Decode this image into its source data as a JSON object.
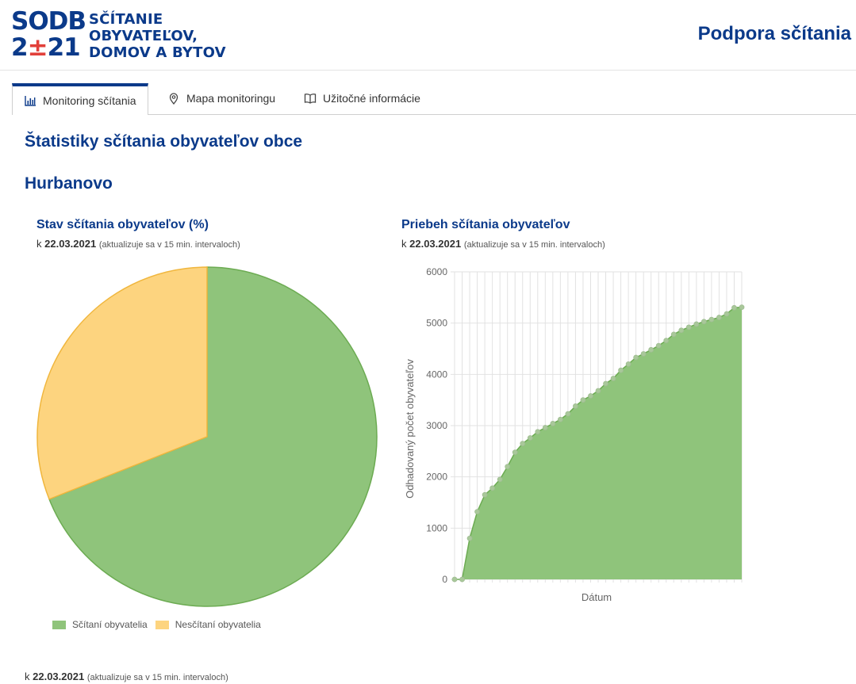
{
  "header": {
    "logo": {
      "row1": "SODB",
      "row2_a": "2",
      "row2_b": "±",
      "row2_c": "21"
    },
    "logo_text": [
      "SČÍTANIE",
      "OBYVATEĽOV,",
      "DOMOV A BYTOV"
    ],
    "support_link": "Podpora sčítania"
  },
  "tabs": [
    {
      "label": "Monitoring sčítania",
      "icon": "bar-chart-icon",
      "active": true
    },
    {
      "label": "Mapa monitoringu",
      "icon": "map-pin-icon",
      "active": false
    },
    {
      "label": "Užitočné informácie",
      "icon": "book-icon",
      "active": false
    }
  ],
  "page": {
    "title": "Štatistiky sčítania obyvateľov obce",
    "municipality": "Hurbanovo"
  },
  "asof": {
    "prefix": "k",
    "date": "22.03.2021",
    "note": "(aktualizuje sa v 15 min. intervaloch)"
  },
  "pie": {
    "title": "Stav sčítania obyvateľov (%)",
    "legend": [
      "Sčítaní obyvatelia",
      "Nesčítaní obyvatelia"
    ]
  },
  "area": {
    "title": "Priebeh sčítania obyvateľov"
  },
  "colors": {
    "brand_blue": "#0b3a8a",
    "brand_red": "#e2403a",
    "counted": "#8fc47b",
    "counted_stroke": "#6cab52",
    "not_counted": "#fdd47f",
    "not_counted_stroke": "#f0b63d"
  },
  "chart_data": [
    {
      "type": "pie",
      "title": "Stav sčítania obyvateľov (%)",
      "categories": [
        "Sčítaní obyvatelia",
        "Nesčítaní obyvatelia"
      ],
      "values": [
        69,
        31
      ],
      "legend": "bottom"
    },
    {
      "type": "area",
      "title": "Priebeh sčítania obyvateľov",
      "xlabel": "Dátum",
      "ylabel": "Odhadovaný počet obyvateľov",
      "ylim": [
        0,
        6000
      ],
      "yticks": [
        0,
        1000,
        2000,
        3000,
        4000,
        5000,
        6000
      ],
      "grid": true,
      "series": [
        {
          "values": [
            0,
            0,
            800,
            1320,
            1650,
            1780,
            1950,
            2200,
            2480,
            2650,
            2760,
            2880,
            2960,
            3040,
            3120,
            3230,
            3380,
            3500,
            3580,
            3680,
            3820,
            3920,
            4080,
            4200,
            4330,
            4400,
            4480,
            4560,
            4660,
            4780,
            4860,
            4920,
            4980,
            5030,
            5070,
            5110,
            5180,
            5300,
            5310
          ]
        }
      ]
    }
  ]
}
